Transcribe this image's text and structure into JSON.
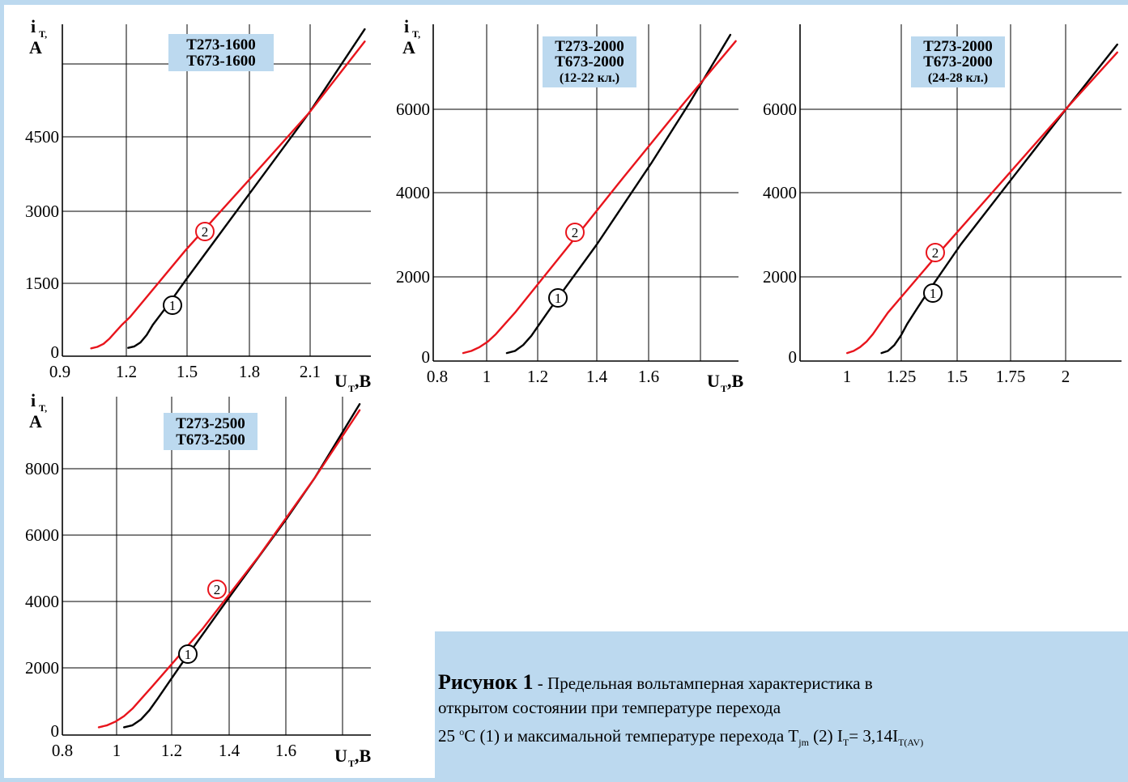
{
  "colors": {
    "curve1": "#000000",
    "curve2": "#e8141c",
    "label_bg": "#bcd9ef",
    "frame": "#bcd9ef"
  },
  "charts": [
    {
      "chart_data": {
        "type": "line",
        "title_lines": [
          "Т273-1600",
          "Т673-1600"
        ],
        "ylabel": {
          "main": "i",
          "sub": "T,",
          "unit": "A"
        },
        "xlabel": {
          "main": "U",
          "sub": "T",
          "unit": ",B"
        },
        "xticks": [
          "0.9",
          "1.2",
          "1.5",
          "1.8",
          "2.1"
        ],
        "yticks": [
          "0",
          "1500",
          "3000",
          "4500"
        ],
        "xlim": [
          0.9,
          2.4
        ],
        "ylim": [
          0,
          6750
        ],
        "series": [
          {
            "name": "1",
            "x": [
              1.22,
              1.25,
              1.28,
              1.31,
              1.34,
              1.38,
              1.42,
              1.5,
              1.8,
              2.1,
              2.37
            ],
            "y": [
              170,
              200,
              280,
              430,
              640,
              860,
              1080,
              1550,
              3250,
              4950,
              6650
            ]
          },
          {
            "name": "2",
            "x": [
              1.04,
              1.07,
              1.1,
              1.13,
              1.16,
              1.19,
              1.23,
              1.5,
              1.8,
              2.1,
              2.37
            ],
            "y": [
              160,
              190,
              250,
              360,
              500,
              640,
              800,
              2160,
              3550,
              4950,
              6400
            ]
          }
        ]
      }
    },
    {
      "chart_data": {
        "type": "line",
        "title_lines": [
          "Т273-2000",
          "Т673-2000",
          "(12-22 кл.)"
        ],
        "ylabel": {
          "main": "i",
          "sub": "T,",
          "unit": "A"
        },
        "xlabel": {
          "main": "U",
          "sub": "T",
          "unit": ",B"
        },
        "xticks": [
          "0.8",
          "1",
          "1.2",
          "1.4",
          "1.6"
        ],
        "yticks": [
          "0",
          "2000",
          "4000",
          "6000"
        ],
        "xlim": [
          0.8,
          1.92
        ],
        "ylim": [
          0,
          8000
        ],
        "series": [
          {
            "name": "1",
            "x": [
              1.07,
              1.1,
              1.13,
              1.16,
              1.19,
              1.23,
              1.28,
              1.4,
              1.6,
              1.74,
              1.89
            ],
            "y": [
              190,
              240,
              380,
              600,
              880,
              1250,
              1700,
              2770,
              4700,
              6130,
              7750
            ]
          },
          {
            "name": "2",
            "x": [
              0.91,
              0.94,
              0.97,
              1.0,
              1.03,
              1.06,
              1.1,
              1.3,
              1.5,
              1.72,
              1.91
            ],
            "y": [
              190,
              240,
              330,
              460,
              640,
              860,
              1150,
              2760,
              4380,
              6130,
              7600
            ]
          }
        ]
      }
    },
    {
      "chart_data": {
        "type": "line",
        "title_lines": [
          "Т273-2000",
          "Т673-2000",
          "(24-28 кл.)"
        ],
        "ylabel": {
          "main": "",
          "sub": "",
          "unit": ""
        },
        "xlabel": {
          "main": "",
          "sub": "",
          "unit": ""
        },
        "xticks": [
          "1",
          "1.25",
          "1.5",
          "1.75",
          "2"
        ],
        "yticks": [
          "0",
          "2000",
          "4000",
          "6000"
        ],
        "xlim": [
          0.75,
          2.25
        ],
        "ylim": [
          0,
          8000
        ],
        "series": [
          {
            "name": "1",
            "x": [
              1.13,
              1.16,
              1.19,
              1.22,
              1.25,
              1.29,
              1.34,
              1.5,
              1.75,
              2.0,
              2.23
            ],
            "y": [
              190,
              240,
              380,
              600,
              880,
              1200,
              1590,
              2770,
              4410,
              6040,
              7520
            ]
          },
          {
            "name": "2",
            "x": [
              0.97,
              1.0,
              1.03,
              1.06,
              1.09,
              1.12,
              1.16,
              1.4,
              1.7,
              2.0,
              2.23
            ],
            "y": [
              190,
              240,
              330,
              460,
              640,
              860,
              1150,
              2580,
              4310,
              6040,
              7330
            ]
          }
        ]
      }
    },
    {
      "chart_data": {
        "type": "line",
        "title_lines": [
          "Т273-2500",
          "Т673-2500"
        ],
        "ylabel": {
          "main": "i",
          "sub": "T,",
          "unit": "A"
        },
        "xlabel": {
          "main": "U",
          "sub": "T",
          "unit": ",B"
        },
        "xticks": [
          "0.8",
          "1",
          "1.2",
          "1.4",
          "1.6"
        ],
        "yticks": [
          "0",
          "2000",
          "4000",
          "6000",
          "8000"
        ],
        "xlim": [
          0.8,
          1.9
        ],
        "ylim": [
          0,
          10000
        ],
        "series": [
          {
            "name": "1",
            "x": [
              1.02,
              1.05,
              1.08,
              1.11,
              1.14,
              1.18,
              1.23,
              1.4,
              1.6,
              1.7,
              1.86
            ],
            "y": [
              230,
              290,
              460,
              730,
              1080,
              1560,
              2160,
              4130,
              6400,
              7600,
              9780
            ]
          },
          {
            "name": "2",
            "x": [
              0.93,
              0.96,
              0.99,
              1.02,
              1.05,
              1.08,
              1.12,
              1.3,
              1.5,
              1.7,
              1.86
            ],
            "y": [
              230,
              290,
              400,
              560,
              780,
              1060,
              1430,
              3140,
              5280,
              7600,
              9600
            ]
          }
        ]
      }
    }
  ],
  "caption": {
    "fig": "Рисунок 1",
    "line1": " - Предельная вольтамперная характеристика в",
    "line2": "открытом состоянии при температуре перехода",
    "line3_a": "25 ",
    "line3_sup": "o",
    "line3_b": "C (1) и максимальной температуре перехода  T",
    "line3_sub1": "jm",
    "line3_c": " (2) I",
    "line3_sub2": "T",
    "line3_d": "= 3,14I",
    "line3_sub3": "T(AV)"
  }
}
